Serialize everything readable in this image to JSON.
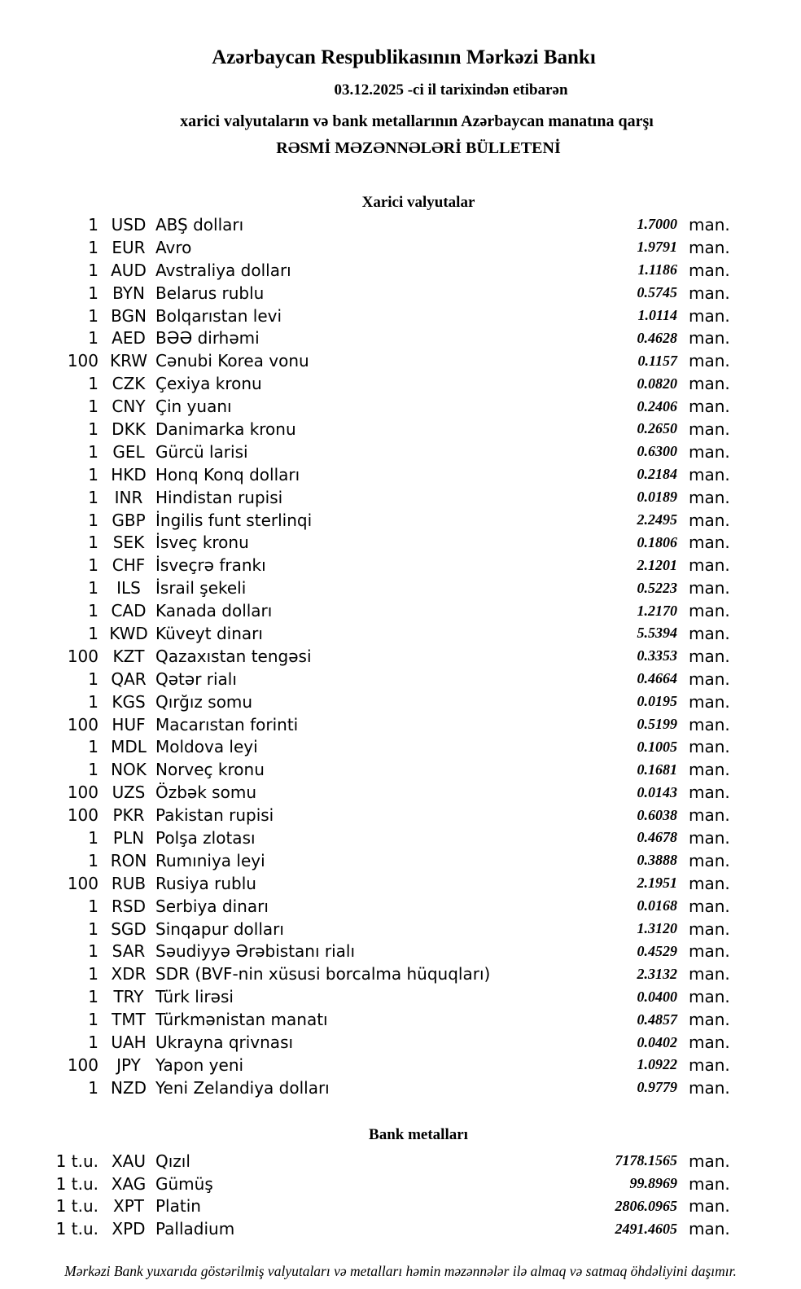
{
  "unit_label": "man.",
  "header": {
    "bank_name": "Azərbaycan Respublikasının Mərkəzi Bankı",
    "date_line": "03.12.2025 -ci il tarixindən etibarən",
    "subtitle": "xarici valyutaların və bank metallarının Azərbaycan manatına qarşı",
    "bulletin_title": "RƏSMİ MƏZƏNNƏLƏRİ BÜLLETENİ"
  },
  "currency_section": {
    "title": "Xarici valyutalar",
    "rows": [
      {
        "qty": "1",
        "code": "USD",
        "name": "ABŞ dolları",
        "rate": "1.7000"
      },
      {
        "qty": "1",
        "code": "EUR",
        "name": "Avro",
        "rate": "1.9791"
      },
      {
        "qty": "1",
        "code": "AUD",
        "name": "Avstraliya dolları",
        "rate": "1.1186"
      },
      {
        "qty": "1",
        "code": "BYN",
        "name": "Belarus rublu",
        "rate": "0.5745"
      },
      {
        "qty": "1",
        "code": "BGN",
        "name": "Bolqarıstan levi",
        "rate": "1.0114"
      },
      {
        "qty": "1",
        "code": "AED",
        "name": "BƏƏ dirhəmi",
        "rate": "0.4628"
      },
      {
        "qty": "100",
        "code": "KRW",
        "name": "Cənubi Korea vonu",
        "rate": "0.1157"
      },
      {
        "qty": "1",
        "code": "CZK",
        "name": "Çexiya kronu",
        "rate": "0.0820"
      },
      {
        "qty": "1",
        "code": "CNY",
        "name": "Çin yuanı",
        "rate": "0.2406"
      },
      {
        "qty": "1",
        "code": "DKK",
        "name": "Danimarka kronu",
        "rate": "0.2650"
      },
      {
        "qty": "1",
        "code": "GEL",
        "name": "Gürcü larisi",
        "rate": "0.6300"
      },
      {
        "qty": "1",
        "code": "HKD",
        "name": "Honq Konq dolları",
        "rate": "0.2184"
      },
      {
        "qty": "1",
        "code": "INR",
        "name": "Hindistan rupisi",
        "rate": "0.0189"
      },
      {
        "qty": "1",
        "code": "GBP",
        "name": "İngilis funt sterlinqi",
        "rate": "2.2495"
      },
      {
        "qty": "1",
        "code": "SEK",
        "name": "İsveç kronu",
        "rate": "0.1806"
      },
      {
        "qty": "1",
        "code": "CHF",
        "name": "İsveçrə frankı",
        "rate": "2.1201"
      },
      {
        "qty": "1",
        "code": "ILS",
        "name": "İsrail şekeli",
        "rate": "0.5223"
      },
      {
        "qty": "1",
        "code": "CAD",
        "name": "Kanada dolları",
        "rate": "1.2170"
      },
      {
        "qty": "1",
        "code": "KWD",
        "name": "Küveyt dinarı",
        "rate": "5.5394"
      },
      {
        "qty": "100",
        "code": "KZT",
        "name": "Qazaxıstan tengəsi",
        "rate": "0.3353"
      },
      {
        "qty": "1",
        "code": "QAR",
        "name": "Qətər rialı",
        "rate": "0.4664"
      },
      {
        "qty": "1",
        "code": "KGS",
        "name": "Qırğız somu",
        "rate": "0.0195"
      },
      {
        "qty": "100",
        "code": "HUF",
        "name": "Macarıstan forinti",
        "rate": "0.5199"
      },
      {
        "qty": "1",
        "code": "MDL",
        "name": "Moldova leyi",
        "rate": "0.1005"
      },
      {
        "qty": "1",
        "code": "NOK",
        "name": "Norveç kronu",
        "rate": "0.1681"
      },
      {
        "qty": "100",
        "code": "UZS",
        "name": "Özbək somu",
        "rate": "0.0143"
      },
      {
        "qty": "100",
        "code": "PKR",
        "name": "Pakistan rupisi",
        "rate": "0.6038"
      },
      {
        "qty": "1",
        "code": "PLN",
        "name": "Polşa zlotası",
        "rate": "0.4678"
      },
      {
        "qty": "1",
        "code": "RON",
        "name": "Rumıniya leyi",
        "rate": "0.3888"
      },
      {
        "qty": "100",
        "code": "RUB",
        "name": "Rusiya rublu",
        "rate": "2.1951"
      },
      {
        "qty": "1",
        "code": "RSD",
        "name": "Serbiya dinarı",
        "rate": "0.0168"
      },
      {
        "qty": "1",
        "code": "SGD",
        "name": "Sinqapur dolları",
        "rate": "1.3120"
      },
      {
        "qty": "1",
        "code": "SAR",
        "name": "Səudiyyə Ərəbistanı rialı",
        "rate": "0.4529"
      },
      {
        "qty": "1",
        "code": "XDR",
        "name": "SDR (BVF-nin xüsusi borcalma hüquqları)",
        "rate": "2.3132"
      },
      {
        "qty": "1",
        "code": "TRY",
        "name": "Türk lirəsi",
        "rate": "0.0400"
      },
      {
        "qty": "1",
        "code": "TMT",
        "name": "Türkmənistan manatı",
        "rate": "0.4857"
      },
      {
        "qty": "1",
        "code": "UAH",
        "name": "Ukrayna qrivnası",
        "rate": "0.0402"
      },
      {
        "qty": "100",
        "code": "JPY",
        "name": "Yapon yeni",
        "rate": "1.0922"
      },
      {
        "qty": "1",
        "code": "NZD",
        "name": "Yeni Zelandiya dolları",
        "rate": "0.9779"
      }
    ]
  },
  "metals_section": {
    "title": "Bank metalları",
    "rows": [
      {
        "qty": "1 t.u.",
        "code": "XAU",
        "name": "Qızıl",
        "rate": "7178.1565"
      },
      {
        "qty": "1 t.u.",
        "code": "XAG",
        "name": "Gümüş",
        "rate": "99.8969"
      },
      {
        "qty": "1 t.u.",
        "code": "XPT",
        "name": "Platin",
        "rate": "2806.0965"
      },
      {
        "qty": "1 t.u.",
        "code": "XPD",
        "name": "Palladium",
        "rate": "2491.4605"
      }
    ]
  },
  "footer": {
    "note": "Mərkəzi Bank yuxarıda göstərilmiş valyutaları və metalları həmin məzənnələr ilə almaq və satmaq öhdəliyini daşımır."
  }
}
